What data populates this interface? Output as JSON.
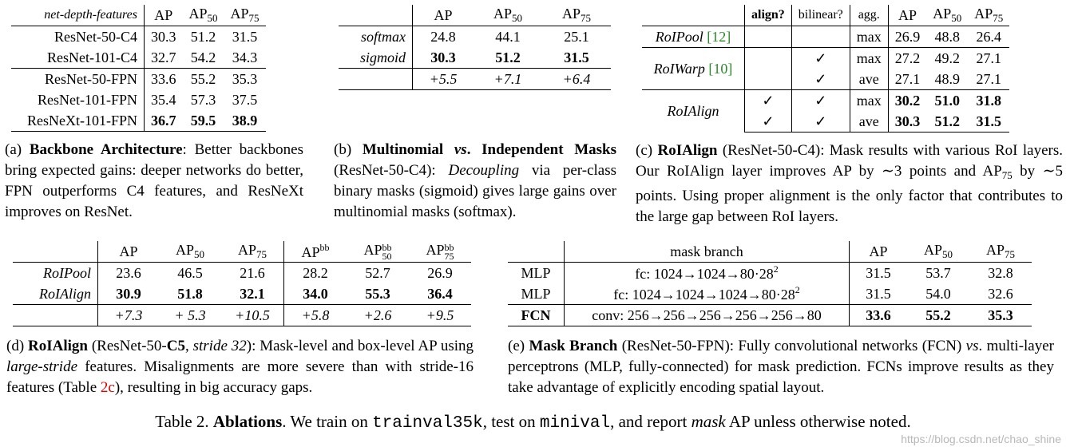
{
  "table_a": {
    "header": [
      "net-depth-features",
      "AP",
      "AP",
      "AP"
    ],
    "subs": [
      "",
      "",
      "50",
      "75"
    ],
    "rows": [
      {
        "name": "ResNet-50-C4",
        "ap": "30.3",
        "ap50": "51.2",
        "ap75": "31.5"
      },
      {
        "name": "ResNet-101-C4",
        "ap": "32.7",
        "ap50": "54.2",
        "ap75": "34.3"
      },
      {
        "name": "ResNet-50-FPN",
        "ap": "33.6",
        "ap50": "55.2",
        "ap75": "35.3"
      },
      {
        "name": "ResNet-101-FPN",
        "ap": "35.4",
        "ap50": "57.3",
        "ap75": "37.5"
      },
      {
        "name": "ResNeXt-101-FPN",
        "ap": "36.7",
        "ap50": "59.5",
        "ap75": "38.9"
      }
    ],
    "caption": {
      "label": "(a) ",
      "bold": "Backbone Architecture",
      "text": ": Better backbones bring expected gains: deeper networks do better, FPN outperforms C4 features, and ResNeXt improves on ResNet."
    }
  },
  "table_b": {
    "header": [
      "AP",
      "AP",
      "AP"
    ],
    "subs": [
      "",
      "50",
      "75"
    ],
    "rows": [
      {
        "name": "softmax",
        "ap": "24.8",
        "ap50": "44.1",
        "ap75": "25.1"
      },
      {
        "name": "sigmoid",
        "ap": "30.3",
        "ap50": "51.2",
        "ap75": "31.5"
      }
    ],
    "delta": {
      "ap": "+5.5",
      "ap50": "+7.1",
      "ap75": "+6.4"
    },
    "caption": {
      "label": "(b) ",
      "bold1": "Multinomial ",
      "boldit": "vs",
      "bold2": ". Independent Masks",
      "t1": " (ResNet-50-C4): ",
      "it1": "Decoupling",
      "t2": " via per-class binary masks (sigmoid) gives large gains over multinomial masks (softmax)."
    }
  },
  "table_c": {
    "header": [
      "align?",
      "bilinear?",
      "agg.",
      "AP",
      "AP",
      "AP"
    ],
    "subs": [
      "",
      "",
      "",
      "",
      "50",
      "75"
    ],
    "check": "✓",
    "rows": [
      {
        "name": "RoIPool",
        "cite": "[12]",
        "align": "",
        "bilinear": "",
        "agg": "max",
        "ap": "26.9",
        "ap50": "48.8",
        "ap75": "26.4"
      },
      {
        "name": "RoIWarp",
        "cite": "[10]",
        "align": "",
        "bilinear": "✓",
        "agg": "max",
        "ap": "27.2",
        "ap50": "49.2",
        "ap75": "27.1"
      },
      {
        "name": "",
        "cite": "",
        "align": "",
        "bilinear": "✓",
        "agg": "ave",
        "ap": "27.1",
        "ap50": "48.9",
        "ap75": "27.1"
      },
      {
        "name": "RoIAlign",
        "cite": "",
        "align": "✓",
        "bilinear": "✓",
        "agg": "max",
        "ap": "30.2",
        "ap50": "51.0",
        "ap75": "31.8"
      },
      {
        "name": "",
        "cite": "",
        "align": "✓",
        "bilinear": "✓",
        "agg": "ave",
        "ap": "30.3",
        "ap50": "51.2",
        "ap75": "31.5"
      }
    ],
    "caption": {
      "label": "(c) ",
      "bold": "RoIAlign",
      "text": " (ResNet-50-C4): Mask results with various RoI layers. Our RoIAlign layer improves AP by ∼3 points and AP",
      "sub": "75",
      "text2": " by ∼5 points. Using proper alignment is the only factor that contributes to the large gap between RoI layers."
    }
  },
  "table_d": {
    "header": [
      "AP",
      "AP",
      "AP",
      "AP",
      "AP",
      "AP"
    ],
    "subs": [
      "",
      "50",
      "75",
      "",
      "50",
      "75"
    ],
    "sups": [
      "",
      "",
      "",
      "bb",
      "bb",
      "bb"
    ],
    "rows": [
      {
        "name": "RoIPool",
        "v": [
          "23.6",
          "46.5",
          "21.6",
          "28.2",
          "52.7",
          "26.9"
        ]
      },
      {
        "name": "RoIAlign",
        "v": [
          "30.9",
          "51.8",
          "32.1",
          "34.0",
          "55.3",
          "36.4"
        ]
      }
    ],
    "delta": [
      "+7.3",
      "+ 5.3",
      "+10.5",
      "+5.8",
      "+2.6",
      "+9.5"
    ],
    "caption": {
      "label": "(d) ",
      "bold": "RoIAlign",
      "t1": " (ResNet-50-",
      "bold2": "C5",
      "t2": ", ",
      "it": "stride 32",
      "t3": "): Mask-level and box-level AP using ",
      "it2": "large-stride",
      "t4": " features. Misalignments are more severe than with stride-16 features (Table ",
      "ref": "2c",
      "t5": "), resulting in big accuracy gaps."
    }
  },
  "table_e": {
    "header": [
      "mask branch",
      "AP",
      "AP",
      "AP"
    ],
    "subs": [
      "",
      "",
      "50",
      "75"
    ],
    "rows": [
      {
        "name": "MLP",
        "branch": "fc: 1024→1024→80·28",
        "sup": "2",
        "ap": "31.5",
        "ap50": "53.7",
        "ap75": "32.8"
      },
      {
        "name": "MLP",
        "branch": "fc: 1024→1024→1024→80·28",
        "sup": "2",
        "ap": "31.5",
        "ap50": "54.0",
        "ap75": "32.6"
      },
      {
        "name": "FCN",
        "branch": "conv: 256→256→256→256→256→80",
        "sup": "",
        "ap": "33.6",
        "ap50": "55.2",
        "ap75": "35.3"
      }
    ],
    "caption": {
      "label": "(e) ",
      "bold": "Mask Branch",
      "t1": " (ResNet-50-FPN): Fully convolutional networks (FCN) ",
      "it": "vs",
      "t2": ". multi-layer perceptrons (MLP, fully-connected) for mask prediction. FCNs improve results as they take advantage of explicitly encoding spatial layout."
    }
  },
  "main_caption": {
    "t1": "Table 2. ",
    "bold": "Ablations",
    "t2": ". We train on ",
    "tt1": "trainval35k",
    "t3": ", test on ",
    "tt2": "minival",
    "t4": ", and report ",
    "it": "mask",
    "t5": " AP unless otherwise noted."
  },
  "watermark": "https://blog.csdn.net/chao_shine"
}
